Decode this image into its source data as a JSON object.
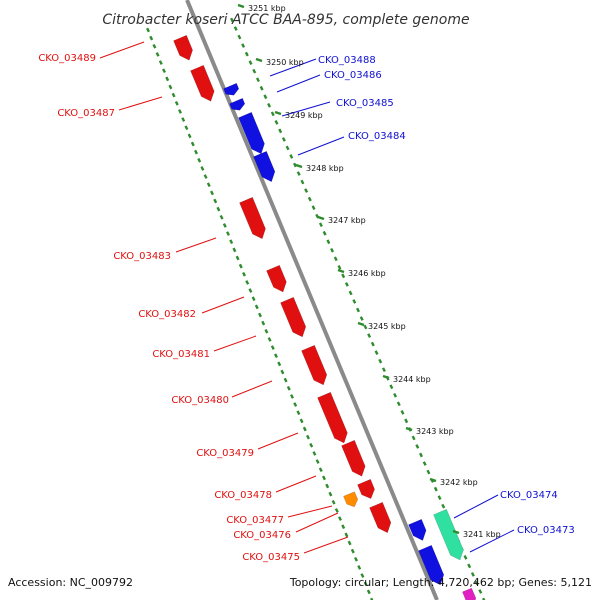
{
  "title": "Citrobacter koseri ATCC BAA-895, complete genome",
  "footer": {
    "accession": "Accession: NC_009792",
    "topology": "Topology: circular; Length: 4,720,462 bp; Genes: 5,121"
  },
  "colors": {
    "backbone": "#8a8a8a",
    "ruler_ticks": "#2e8b2e",
    "forward_strand": "#1010e0",
    "reverse_strand": "#e01010",
    "orange_feature": "#ff8c00",
    "teal_feature": "#30e0a0",
    "magenta_feature": "#e020c0",
    "forward_label": "#1010d0",
    "reverse_label": "#e01010"
  },
  "kbp_ticks": [
    "3251 kbp",
    "3250 kbp",
    "3249 kbp",
    "3248 kbp",
    "3247 kbp",
    "3246 kbp",
    "3245 kbp",
    "3244 kbp",
    "3243 kbp",
    "3242 kbp",
    "3241 kbp"
  ],
  "forward_genes": [
    "CKO_03488",
    "CKO_03486",
    "CKO_03485",
    "CKO_03484",
    "CKO_03474",
    "CKO_03473"
  ],
  "reverse_genes": [
    "CKO_03489",
    "CKO_03487",
    "CKO_03483",
    "CKO_03482",
    "CKO_03481",
    "CKO_03480",
    "CKO_03479",
    "CKO_03478",
    "CKO_03477",
    "CKO_03476",
    "CKO_03475"
  ]
}
